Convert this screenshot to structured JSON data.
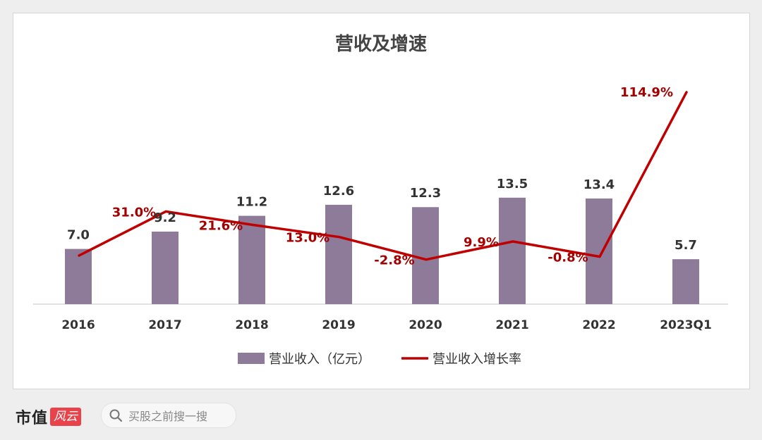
{
  "chart_data": {
    "type": "bar",
    "title": "营收及增速",
    "categories": [
      "2016",
      "2017",
      "2018",
      "2019",
      "2020",
      "2021",
      "2022",
      "2023Q1"
    ],
    "series": [
      {
        "name": "营业收入（亿元）",
        "type": "bar",
        "values": [
          7.0,
          9.2,
          11.2,
          12.6,
          12.3,
          13.5,
          13.4,
          5.7
        ],
        "labels": [
          "7.0",
          "9.2",
          "11.2",
          "12.6",
          "12.3",
          "13.5",
          "13.4",
          "5.7"
        ],
        "color": "#8e7b99"
      },
      {
        "name": "营业收入增长率",
        "type": "line",
        "values": [
          null,
          31.0,
          21.6,
          13.0,
          -2.8,
          9.9,
          -0.8,
          114.9
        ],
        "labels": [
          "",
          "31.0%",
          "21.6%",
          "13.0%",
          "-2.8%",
          "9.9%",
          "-0.8%",
          "114.9%"
        ],
        "color": "#c00000"
      }
    ],
    "legend_position": "bottom",
    "grid": false
  },
  "footer": {
    "brand": "市值",
    "brand_seal": "风云",
    "search_placeholder": "买股之前搜一搜"
  }
}
